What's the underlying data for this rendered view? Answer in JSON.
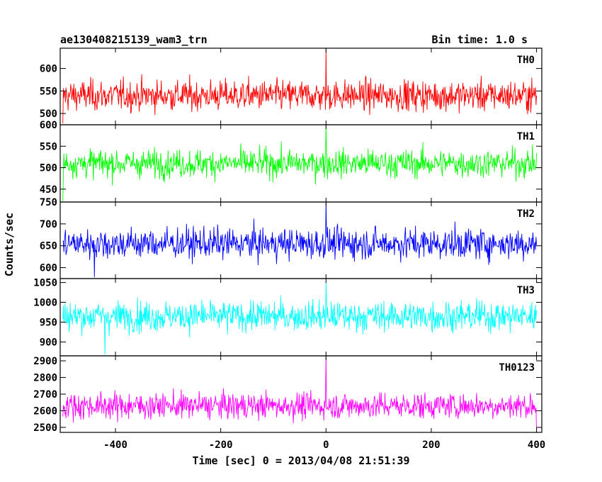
{
  "chart_data": {
    "type": "line",
    "title": "ae130408215139_wam3_trn",
    "subtitle": "Bin time: 1.0 s",
    "xlabel": "Time [sec] 0 = 2013/04/08 21:51:39",
    "ylabel": "Counts/sec",
    "xlim": [
      -505,
      410
    ],
    "x_ticks": [
      -400,
      -200,
      0,
      200,
      400
    ],
    "x_range": [
      -500,
      400
    ],
    "bin": 1.0,
    "panels": [
      {
        "name": "TH0",
        "color": "#ff0000",
        "ylim": [
          475,
          645
        ],
        "yticks": [
          500,
          550,
          600
        ],
        "mean": 540,
        "noise": 24,
        "peak": 645,
        "low_x": -500,
        "low_y": 478
      },
      {
        "name": "TH1",
        "color": "#00ff00",
        "ylim": [
          420,
          600
        ],
        "yticks": [
          450,
          500,
          550,
          600
        ],
        "mean": 510,
        "noise": 23,
        "peak": 598,
        "low_x": -500,
        "low_y": 422
      },
      {
        "name": "TH2",
        "color": "#0000ff",
        "ylim": [
          575,
          750
        ],
        "yticks": [
          600,
          650,
          700,
          750
        ],
        "mean": 655,
        "noise": 25,
        "peak": 750,
        "low_x": -440,
        "low_y": 578
      },
      {
        "name": "TH3",
        "color": "#00ffff",
        "ylim": [
          865,
          1060
        ],
        "yticks": [
          900,
          950,
          1000,
          1050
        ],
        "mean": 965,
        "noise": 27,
        "peak": 1050,
        "low_x": -420,
        "low_y": 868
      },
      {
        "name": "TH0123",
        "color": "#ff00ff",
        "ylim": [
          2470,
          2930
        ],
        "yticks": [
          2500,
          2600,
          2700,
          2800,
          2900
        ],
        "mean": 2630,
        "noise": 55,
        "peak": 2930,
        "low_x": 400,
        "low_y": 2470
      }
    ],
    "grid": false,
    "legend": "none"
  }
}
